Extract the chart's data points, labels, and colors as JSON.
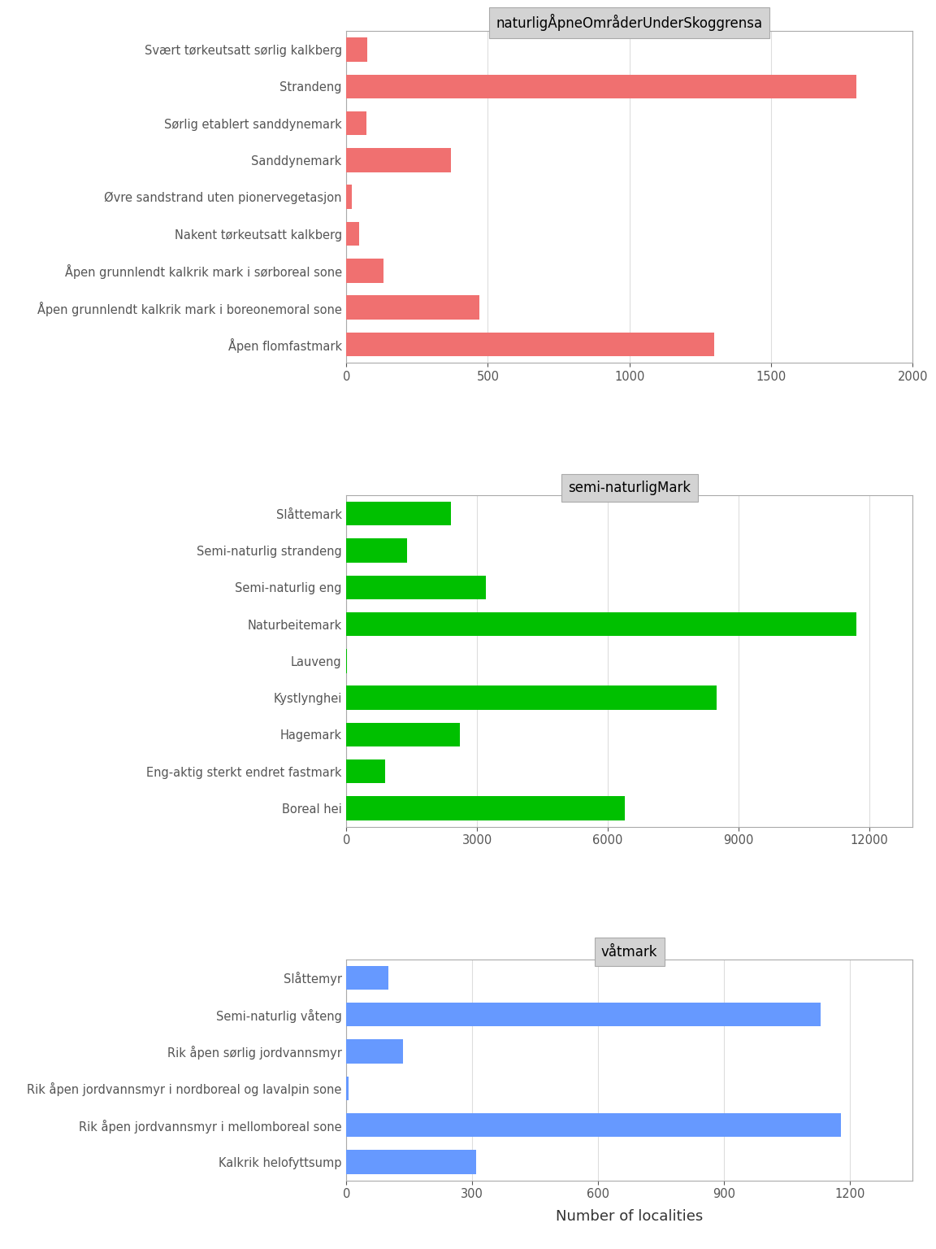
{
  "panel1": {
    "title": "naturligÅpneOmråderUnderSkoggrensa",
    "color": "#F07070",
    "categories": [
      "Svært tørkeutsatt sørlig kalkberg",
      "Strandeng",
      "Sørlig etablert sanddynemark",
      "Sanddynemark",
      "Øvre sandstrand uten pionervegetasjon",
      "Nakent tørkeutsatt kalkberg",
      "Åpen grunnlendt kalkrik mark i sørboreal sone",
      "Åpen grunnlendt kalkrik mark i boreonemoral sone",
      "Åpen flomfastmark"
    ],
    "values": [
      75,
      1800,
      70,
      370,
      20,
      45,
      130,
      470,
      1300
    ],
    "xlim": [
      0,
      2000
    ],
    "xticks": [
      0,
      500,
      1000,
      1500,
      2000
    ]
  },
  "panel2": {
    "title": "semi-naturligMark",
    "color": "#00C000",
    "categories": [
      "Slåttemark",
      "Semi-naturlig strandeng",
      "Semi-naturlig eng",
      "Naturbeitemark",
      "Lauveng",
      "Kystlynghei",
      "Hagemark",
      "Eng-aktig sterkt endret fastmark",
      "Boreal hei"
    ],
    "values": [
      2400,
      1400,
      3200,
      11700,
      10,
      8500,
      2600,
      900,
      6400
    ],
    "xlim": [
      0,
      13000
    ],
    "xticks": [
      0,
      3000,
      6000,
      9000,
      12000
    ]
  },
  "panel3": {
    "title": "våtmark",
    "color": "#6699FF",
    "categories": [
      "Slåttemyr",
      "Semi-naturlig våteng",
      "Rik åpen sørlig jordvannsmyr",
      "Rik åpen jordvannsmyr i nordboreal og lavalpin sone",
      "Rik åpen jordvannsmyr i mellomboreal sone",
      "Kalkrik helofyttsump"
    ],
    "values": [
      100,
      1130,
      135,
      5,
      1180,
      310
    ],
    "xlim": [
      0,
      1350
    ],
    "xticks": [
      0,
      300,
      600,
      900,
      1200
    ]
  },
  "background_color": "#FFFFFF",
  "panel_bg": "#FFFFFF",
  "title_bg": "#D3D3D3",
  "xlabel": "Number of localities",
  "text_color": "#555555",
  "grid_color": "#DDDDDD"
}
